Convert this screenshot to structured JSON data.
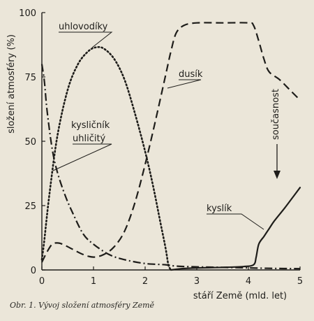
{
  "caption": "Obr. 1. Vývoj složení atmosféry Země",
  "chart_data": {
    "type": "line",
    "xlabel": "stáří Země (mld. let)",
    "ylabel": "složení atmosféry (%)",
    "xlim": [
      0,
      5
    ],
    "ylim": [
      0,
      100
    ],
    "x_ticks": [
      "0",
      "1",
      "2",
      "3",
      "4",
      "5"
    ],
    "y_ticks": [
      "0",
      "25",
      "50",
      "75",
      "100"
    ],
    "grid": false,
    "series": [
      {
        "name": "uhlovodíky",
        "style": "dotted",
        "points": [
          [
            0.0,
            4
          ],
          [
            0.05,
            12
          ],
          [
            0.15,
            30
          ],
          [
            0.3,
            52
          ],
          [
            0.5,
            70
          ],
          [
            0.7,
            80
          ],
          [
            0.9,
            85
          ],
          [
            1.05,
            86.5
          ],
          [
            1.2,
            86
          ],
          [
            1.4,
            82
          ],
          [
            1.6,
            74
          ],
          [
            1.8,
            61
          ],
          [
            2.0,
            46
          ],
          [
            2.15,
            33
          ],
          [
            2.3,
            18
          ],
          [
            2.4,
            8
          ],
          [
            2.45,
            2
          ],
          [
            2.5,
            0
          ]
        ]
      },
      {
        "name": "dusík",
        "style": "dashed",
        "points": [
          [
            0.0,
            3
          ],
          [
            0.1,
            7
          ],
          [
            0.2,
            10
          ],
          [
            0.3,
            10.5
          ],
          [
            0.4,
            10
          ],
          [
            0.6,
            8
          ],
          [
            0.8,
            6
          ],
          [
            1.0,
            5
          ],
          [
            1.2,
            6
          ],
          [
            1.4,
            9
          ],
          [
            1.6,
            15
          ],
          [
            1.8,
            26
          ],
          [
            2.0,
            41
          ],
          [
            2.2,
            58
          ],
          [
            2.4,
            76
          ],
          [
            2.5,
            85
          ],
          [
            2.6,
            92
          ],
          [
            2.75,
            95
          ],
          [
            3.0,
            96
          ],
          [
            3.5,
            96
          ],
          [
            4.0,
            96
          ],
          [
            4.1,
            95
          ],
          [
            4.2,
            89
          ],
          [
            4.3,
            82
          ],
          [
            4.4,
            77
          ],
          [
            4.6,
            74
          ],
          [
            4.8,
            70
          ],
          [
            5.0,
            66
          ]
        ]
      },
      {
        "name": "kysličník uhličitý",
        "style": "dash-dot",
        "points": [
          [
            0.0,
            80
          ],
          [
            0.05,
            73
          ],
          [
            0.1,
            62
          ],
          [
            0.2,
            47
          ],
          [
            0.3,
            38
          ],
          [
            0.45,
            29
          ],
          [
            0.6,
            22
          ],
          [
            0.8,
            14
          ],
          [
            1.0,
            10
          ],
          [
            1.3,
            6
          ],
          [
            1.6,
            4
          ],
          [
            2.0,
            2.5
          ],
          [
            2.4,
            2
          ],
          [
            2.6,
            1.5
          ],
          [
            3.0,
            1.2
          ],
          [
            3.5,
            1.0
          ],
          [
            4.0,
            0.8
          ],
          [
            4.5,
            0.6
          ],
          [
            5.0,
            0.5
          ]
        ]
      },
      {
        "name": "kyslík",
        "style": "solid",
        "points": [
          [
            2.5,
            0
          ],
          [
            2.7,
            0.5
          ],
          [
            3.0,
            0.8
          ],
          [
            3.5,
            1.0
          ],
          [
            3.9,
            1.3
          ],
          [
            4.1,
            2
          ],
          [
            4.15,
            5
          ],
          [
            4.2,
            10
          ],
          [
            4.3,
            13
          ],
          [
            4.4,
            16
          ],
          [
            4.5,
            19
          ],
          [
            4.7,
            24
          ],
          [
            4.85,
            28
          ],
          [
            5.0,
            32
          ]
        ]
      }
    ],
    "annotations": [
      {
        "text": "uhlovodíky"
      },
      {
        "text": "dusík"
      },
      {
        "text": "kysličník"
      },
      {
        "text": "uhličitý"
      },
      {
        "text": "kyslík"
      },
      {
        "text": "současnost"
      }
    ]
  }
}
